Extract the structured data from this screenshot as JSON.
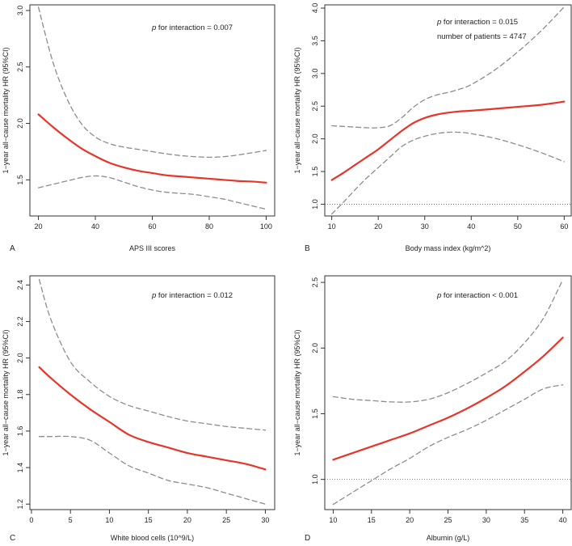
{
  "figure": {
    "ylabel_common": "1−year all−cause mortality HR (95%CI)"
  },
  "chart_data": [
    {
      "panel": "A",
      "type": "line",
      "title": "",
      "xlabel": "APS III scores",
      "ylabel": "1−year all−cause mortality HR (95%CI)",
      "xlim": [
        17,
        103
      ],
      "ylim": [
        1.18,
        3.05
      ],
      "xticks": [
        20,
        40,
        60,
        80,
        100
      ],
      "yticks": [
        1.5,
        2.0,
        2.5,
        3.0
      ],
      "annotation": {
        "italic": "p",
        "rest": " for interaction = 0.007"
      },
      "extra_annotation": null,
      "reference_line": null,
      "series": [
        {
          "name": "HR",
          "style": "solid-red",
          "x": [
            20,
            25,
            30,
            35,
            40,
            45,
            50,
            55,
            60,
            65,
            70,
            75,
            80,
            85,
            90,
            95,
            100
          ],
          "y": [
            2.08,
            1.97,
            1.87,
            1.78,
            1.71,
            1.65,
            1.61,
            1.58,
            1.56,
            1.54,
            1.53,
            1.52,
            1.51,
            1.5,
            1.49,
            1.485,
            1.475
          ]
        },
        {
          "name": "Upper 95% CI",
          "style": "dashed-grey",
          "x": [
            20,
            25,
            30,
            35,
            40,
            45,
            50,
            55,
            60,
            65,
            70,
            75,
            80,
            85,
            90,
            95,
            100
          ],
          "y": [
            3.03,
            2.55,
            2.22,
            2.0,
            1.88,
            1.82,
            1.79,
            1.77,
            1.75,
            1.73,
            1.715,
            1.705,
            1.7,
            1.705,
            1.72,
            1.74,
            1.76
          ]
        },
        {
          "name": "Lower 95% CI",
          "style": "dashed-grey",
          "x": [
            20,
            25,
            30,
            35,
            40,
            45,
            50,
            55,
            60,
            65,
            70,
            75,
            80,
            85,
            90,
            95,
            100
          ],
          "y": [
            1.43,
            1.46,
            1.49,
            1.52,
            1.535,
            1.52,
            1.48,
            1.44,
            1.41,
            1.39,
            1.38,
            1.37,
            1.35,
            1.33,
            1.3,
            1.27,
            1.24
          ]
        }
      ]
    },
    {
      "panel": "B",
      "type": "line",
      "title": "",
      "xlabel": "Body mass index (kg/m^2)",
      "ylabel": "1−year all−cause mortality HR (95%CI)",
      "xlim": [
        8.5,
        61.5
      ],
      "ylim": [
        0.82,
        4.05
      ],
      "xticks": [
        10,
        20,
        30,
        40,
        50,
        60
      ],
      "yticks": [
        1.0,
        1.5,
        2.0,
        2.5,
        3.0,
        3.5,
        4.0
      ],
      "annotation": {
        "italic": "p",
        "rest": " for interaction = 0.015"
      },
      "extra_annotation": "number of patients = 4747",
      "reference_line": 1.0,
      "series": [
        {
          "name": "HR",
          "style": "solid-red",
          "x": [
            10,
            12.5,
            15,
            17.5,
            20,
            22.5,
            25,
            27.5,
            30,
            32.5,
            35,
            37.5,
            40,
            45,
            50,
            55,
            60
          ],
          "y": [
            1.37,
            1.48,
            1.6,
            1.72,
            1.84,
            1.98,
            2.12,
            2.24,
            2.32,
            2.37,
            2.4,
            2.42,
            2.43,
            2.46,
            2.49,
            2.52,
            2.57
          ]
        },
        {
          "name": "Upper 95% CI",
          "style": "dashed-grey",
          "x": [
            10,
            12.5,
            15,
            17.5,
            20,
            22.5,
            25,
            27.5,
            30,
            32.5,
            35,
            37.5,
            40,
            45,
            50,
            55,
            60
          ],
          "y": [
            2.2,
            2.19,
            2.18,
            2.17,
            2.17,
            2.2,
            2.32,
            2.48,
            2.6,
            2.67,
            2.71,
            2.76,
            2.83,
            3.05,
            3.33,
            3.65,
            4.02
          ]
        },
        {
          "name": "Lower 95% CI",
          "style": "dashed-grey",
          "x": [
            10,
            12.5,
            15,
            17.5,
            20,
            22.5,
            25,
            27.5,
            30,
            32.5,
            35,
            37.5,
            40,
            45,
            50,
            55,
            60
          ],
          "y": [
            0.85,
            1.03,
            1.22,
            1.4,
            1.56,
            1.72,
            1.88,
            1.98,
            2.04,
            2.08,
            2.1,
            2.1,
            2.08,
            2.01,
            1.91,
            1.79,
            1.65
          ]
        }
      ]
    },
    {
      "panel": "C",
      "type": "line",
      "title": "",
      "xlabel": "White blood cells (10^9/L)",
      "ylabel": "1−year all−cause mortality HR (95%CI)",
      "xlim": [
        -0.2,
        31.2
      ],
      "ylim": [
        1.17,
        2.45
      ],
      "xticks": [
        0,
        5,
        10,
        15,
        20,
        25,
        30
      ],
      "yticks": [
        1.2,
        1.4,
        1.6,
        1.8,
        2.0,
        2.2,
        2.4
      ],
      "annotation": {
        "italic": "p",
        "rest": " for interaction = 0.012"
      },
      "extra_annotation": null,
      "reference_line": null,
      "series": [
        {
          "name": "HR",
          "style": "solid-red",
          "x": [
            1,
            2.5,
            5,
            7.5,
            10,
            12.5,
            15,
            17.5,
            20,
            22.5,
            25,
            27.5,
            30
          ],
          "y": [
            1.95,
            1.89,
            1.8,
            1.72,
            1.65,
            1.58,
            1.54,
            1.51,
            1.48,
            1.46,
            1.44,
            1.42,
            1.39
          ]
        },
        {
          "name": "Upper 95% CI",
          "style": "dashed-grey",
          "x": [
            1,
            2.5,
            5,
            7.5,
            10,
            12.5,
            15,
            17.5,
            20,
            22.5,
            25,
            27.5,
            30
          ],
          "y": [
            2.43,
            2.21,
            1.98,
            1.87,
            1.79,
            1.74,
            1.71,
            1.68,
            1.655,
            1.64,
            1.625,
            1.615,
            1.605
          ]
        },
        {
          "name": "Lower 95% CI",
          "style": "dashed-grey",
          "x": [
            1,
            2.5,
            5,
            7.5,
            10,
            12.5,
            15,
            17.5,
            20,
            22.5,
            25,
            27.5,
            30
          ],
          "y": [
            1.57,
            1.57,
            1.57,
            1.55,
            1.48,
            1.41,
            1.37,
            1.33,
            1.31,
            1.29,
            1.26,
            1.23,
            1.2
          ]
        }
      ]
    },
    {
      "panel": "D",
      "type": "line",
      "title": "",
      "xlabel": "Albumin (g/L)",
      "ylabel": "1−year all−cause mortality HR (95%CI)",
      "xlim": [
        8.9,
        41.1
      ],
      "ylim": [
        0.77,
        2.55
      ],
      "xticks": [
        10,
        15,
        20,
        25,
        30,
        35,
        40
      ],
      "yticks": [
        1.0,
        1.5,
        2.0,
        2.5
      ],
      "annotation": {
        "italic": "p",
        "rest": " for interaction < 0.001"
      },
      "extra_annotation": null,
      "reference_line": 1.0,
      "series": [
        {
          "name": "HR",
          "style": "solid-red",
          "x": [
            10,
            12.5,
            15,
            17.5,
            20,
            22.5,
            25,
            27.5,
            30,
            32.5,
            35,
            37.5,
            40
          ],
          "y": [
            1.15,
            1.2,
            1.25,
            1.3,
            1.35,
            1.41,
            1.47,
            1.54,
            1.62,
            1.71,
            1.82,
            1.94,
            2.08
          ]
        },
        {
          "name": "Upper 95% CI",
          "style": "dashed-grey",
          "x": [
            10,
            12.5,
            15,
            17.5,
            20,
            22.5,
            25,
            27.5,
            30,
            32.5,
            35,
            37.5,
            40
          ],
          "y": [
            1.63,
            1.61,
            1.6,
            1.59,
            1.59,
            1.61,
            1.66,
            1.73,
            1.81,
            1.9,
            2.04,
            2.23,
            2.52
          ]
        },
        {
          "name": "Lower 95% CI",
          "style": "dashed-grey",
          "x": [
            10,
            12.5,
            15,
            17.5,
            20,
            22.5,
            25,
            27.5,
            30,
            32.5,
            35,
            37.5,
            40
          ],
          "y": [
            0.81,
            0.9,
            0.99,
            1.08,
            1.16,
            1.25,
            1.32,
            1.38,
            1.45,
            1.53,
            1.61,
            1.69,
            1.72
          ]
        }
      ]
    }
  ]
}
